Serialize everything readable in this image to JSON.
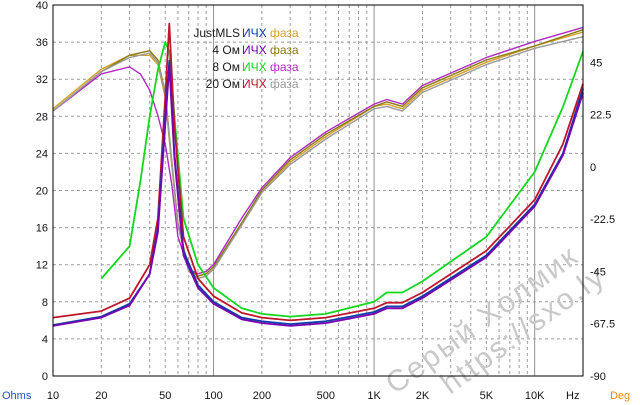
{
  "chart_data": {
    "type": "line",
    "x_scale": "log",
    "xlim": [
      10,
      20000
    ],
    "ylim_left": [
      0,
      40
    ],
    "ylim_right": [
      -90,
      67.5
    ],
    "grid": true,
    "x_ticks": [
      "10",
      "20",
      "50",
      "100",
      "200",
      "500",
      "1K",
      "2K",
      "5K",
      "10K"
    ],
    "x_tick_values": [
      10,
      20,
      50,
      100,
      200,
      500,
      1000,
      2000,
      5000,
      10000
    ],
    "y_left_ticks": [
      0,
      4,
      8,
      12,
      16,
      20,
      24,
      28,
      32,
      36,
      40
    ],
    "y_right_ticks": [
      -90,
      -67.5,
      -45,
      -22.5,
      0,
      22.5,
      45
    ],
    "x_unit_label": "Hz",
    "y_left_unit_label": "Ohms",
    "y_right_unit_label": "Deg",
    "legend": [
      {
        "name": "JustMLS",
        "mag_label": "ИЧХ",
        "phase_label": "фаза",
        "mag_color": "#0b3ea8",
        "phase_color": "#d3a02a"
      },
      {
        "name": "4 Ом",
        "mag_label": "ИЧХ",
        "phase_label": "фаза",
        "mag_color": "#7b00b0",
        "phase_color": "#8a7a10"
      },
      {
        "name": "8 Ом",
        "mag_label": "ИЧХ",
        "phase_label": "фаза",
        "mag_color": "#12d81e",
        "phase_color": "#b02ac2"
      },
      {
        "name": "20 Ом",
        "mag_label": "ИЧХ",
        "phase_label": "фаза",
        "mag_color": "#c0162a",
        "phase_color": "#9a9a9a"
      }
    ],
    "series": [
      {
        "name": "JustMLS",
        "kind": "magnitude",
        "axis": "left",
        "color": "#0b3ea8",
        "x": [
          10,
          20,
          30,
          40,
          45,
          50,
          53,
          57,
          65,
          80,
          100,
          150,
          200,
          300,
          500,
          1000,
          1200,
          1500,
          2000,
          5000,
          10000,
          15000,
          20000
        ],
        "y": [
          5.5,
          6.4,
          7.8,
          11,
          16,
          28,
          34,
          24,
          13.5,
          9.8,
          8,
          6.3,
          5.9,
          5.6,
          5.9,
          6.9,
          7.5,
          7.5,
          8.6,
          13,
          18.5,
          24,
          31
        ]
      },
      {
        "name": "4 Ом",
        "kind": "magnitude",
        "axis": "left",
        "color": "#7b00b0",
        "x": [
          10,
          20,
          30,
          40,
          45,
          50,
          53,
          57,
          65,
          80,
          100,
          150,
          200,
          300,
          500,
          1000,
          1200,
          1500,
          2000,
          5000,
          10000,
          15000,
          20000
        ],
        "y": [
          5.4,
          6.3,
          7.6,
          11,
          15.5,
          27,
          33.5,
          23.5,
          13,
          9.5,
          7.8,
          6.1,
          5.7,
          5.4,
          5.7,
          6.7,
          7.3,
          7.3,
          8.4,
          12.8,
          18.3,
          23.8,
          30.5
        ]
      },
      {
        "name": "8 Ом",
        "kind": "magnitude",
        "axis": "left",
        "color": "#12d81e",
        "x": [
          20,
          30,
          35,
          40,
          45,
          50,
          53,
          57,
          65,
          80,
          100,
          150,
          200,
          300,
          500,
          1000,
          1200,
          1500,
          2000,
          5000,
          10000,
          15000,
          20000
        ],
        "y": [
          10.5,
          14,
          21,
          28,
          33,
          36,
          35,
          28,
          17,
          12,
          9.5,
          7.3,
          6.7,
          6.4,
          6.7,
          8,
          9,
          9,
          10.2,
          15,
          22,
          29,
          35
        ]
      },
      {
        "name": "20 Ом",
        "kind": "magnitude",
        "axis": "left",
        "color": "#c0162a",
        "x": [
          10,
          20,
          30,
          40,
          45,
          50,
          53,
          57,
          65,
          80,
          100,
          150,
          200,
          300,
          500,
          1000,
          1200,
          1500,
          2000,
          5000,
          10000,
          15000,
          20000
        ],
        "y": [
          6.3,
          7,
          8.4,
          12,
          17,
          30,
          38,
          27,
          15,
          10.5,
          8.6,
          6.8,
          6.3,
          6,
          6.3,
          7.3,
          7.9,
          7.9,
          9,
          13.5,
          19,
          25,
          31.5
        ]
      },
      {
        "name": "JustMLS",
        "kind": "phase",
        "axis": "right",
        "color": "#d3a02a",
        "x": [
          10,
          20,
          30,
          40,
          45,
          50,
          55,
          60,
          70,
          80,
          90,
          100,
          150,
          200,
          300,
          500,
          1000,
          1200,
          1500,
          2000,
          5000,
          10000,
          20000
        ],
        "y": [
          25,
          42,
          48,
          48,
          44,
          30,
          0,
          -25,
          -45,
          -48,
          -47,
          -44,
          -25,
          -11,
          2,
          13,
          26,
          27,
          25,
          33,
          45,
          52,
          58
        ]
      },
      {
        "name": "4 Ом",
        "kind": "phase",
        "axis": "right",
        "color": "#8a7a10",
        "x": [
          10,
          20,
          30,
          40,
          45,
          50,
          55,
          60,
          70,
          80,
          90,
          100,
          150,
          200,
          300,
          500,
          1000,
          1200,
          1500,
          2000,
          5000,
          10000,
          20000
        ],
        "y": [
          24,
          41,
          48,
          50,
          46,
          32,
          2,
          -24,
          -44,
          -47,
          -46,
          -43,
          -24,
          -10,
          3,
          14,
          26,
          28,
          26,
          34,
          46,
          52,
          59
        ]
      },
      {
        "name": "8 Ом",
        "kind": "phase",
        "axis": "right",
        "color": "#b02ac2",
        "x": [
          10,
          20,
          30,
          35,
          40,
          45,
          50,
          55,
          60,
          70,
          80,
          90,
          100,
          150,
          200,
          300,
          500,
          1000,
          1200,
          1500,
          2000,
          5000,
          10000,
          20000
        ],
        "y": [
          24,
          40,
          43,
          40,
          33,
          22,
          10,
          -8,
          -30,
          -44,
          -46,
          -45,
          -42,
          -22,
          -9,
          4,
          15,
          27,
          29,
          27,
          35,
          47,
          54,
          60
        ]
      },
      {
        "name": "20 Ом",
        "kind": "phase",
        "axis": "right",
        "color": "#9a9a9a",
        "x": [
          10,
          20,
          30,
          40,
          45,
          50,
          55,
          60,
          70,
          80,
          90,
          100,
          150,
          200,
          300,
          500,
          1000,
          1200,
          1500,
          2000,
          5000,
          10000,
          20000
        ],
        "y": [
          24,
          41,
          47,
          49,
          45,
          31,
          1,
          -25,
          -45,
          -48,
          -47,
          -44,
          -25,
          -11,
          1,
          12,
          25,
          26,
          24,
          32,
          44,
          51,
          56
        ]
      }
    ]
  },
  "watermark": {
    "line1": "Серый Холмик",
    "line2": "https://sxo.ly"
  }
}
